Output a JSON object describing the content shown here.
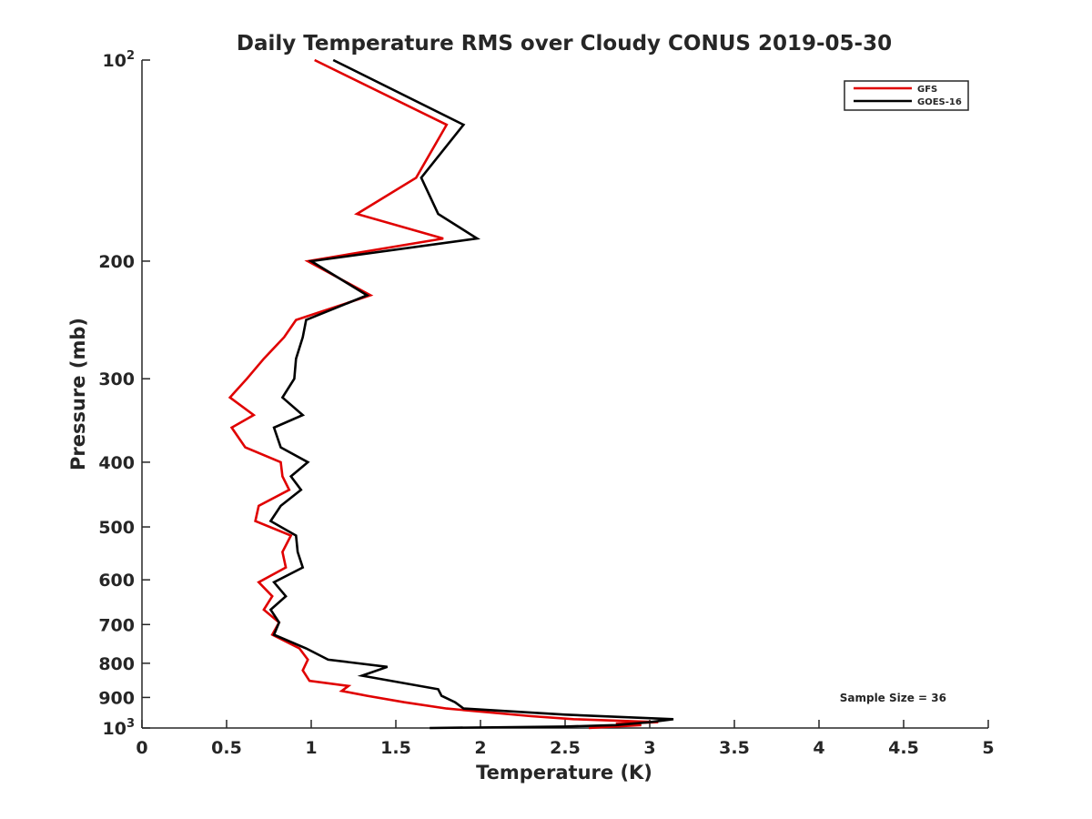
{
  "chart_data": {
    "type": "line",
    "title": "Daily Temperature RMS over Cloudy CONUS 2019-05-30",
    "xlabel": "Temperature (K)",
    "ylabel": "Pressure (mb)",
    "xlim": [
      0,
      5
    ],
    "ylim": [
      100,
      1000
    ],
    "y_scale": "log",
    "y_direction": "reversed",
    "grid": false,
    "legend_position": "top-right",
    "x_ticks": [
      0,
      0.5,
      1,
      1.5,
      2,
      2.5,
      3,
      3.5,
      4,
      4.5,
      5
    ],
    "x_tick_labels": [
      "0",
      "0.5",
      "1",
      "1.5",
      "2",
      "2.5",
      "3",
      "3.5",
      "4",
      "4.5",
      "5"
    ],
    "y_ticks": [
      100,
      200,
      300,
      400,
      500,
      600,
      700,
      800,
      900,
      1000
    ],
    "y_tick_labels": [
      {
        "base": "10",
        "exp": "2"
      },
      {
        "base": "200",
        "exp": ""
      },
      {
        "base": "300",
        "exp": ""
      },
      {
        "base": "400",
        "exp": ""
      },
      {
        "base": "500",
        "exp": ""
      },
      {
        "base": "600",
        "exp": ""
      },
      {
        "base": "700",
        "exp": ""
      },
      {
        "base": "800",
        "exp": ""
      },
      {
        "base": "900",
        "exp": ""
      },
      {
        "base": "10",
        "exp": "3"
      }
    ],
    "annotation": "Sample Size = 36",
    "series": [
      {
        "name": "GFS",
        "color": "#e00000",
        "points": [
          [
            1.02,
            100
          ],
          [
            1.8,
            125
          ],
          [
            1.62,
            150
          ],
          [
            1.27,
            170
          ],
          [
            1.78,
            185
          ],
          [
            0.98,
            200
          ],
          [
            1.35,
            225
          ],
          [
            0.91,
            245
          ],
          [
            0.84,
            260
          ],
          [
            0.72,
            280
          ],
          [
            0.62,
            300
          ],
          [
            0.52,
            320
          ],
          [
            0.66,
            340
          ],
          [
            0.53,
            355
          ],
          [
            0.61,
            380
          ],
          [
            0.82,
            400
          ],
          [
            0.83,
            420
          ],
          [
            0.87,
            440
          ],
          [
            0.69,
            465
          ],
          [
            0.67,
            490
          ],
          [
            0.88,
            515
          ],
          [
            0.83,
            545
          ],
          [
            0.85,
            575
          ],
          [
            0.69,
            605
          ],
          [
            0.77,
            635
          ],
          [
            0.72,
            665
          ],
          [
            0.81,
            695
          ],
          [
            0.77,
            725
          ],
          [
            0.93,
            760
          ],
          [
            0.98,
            790
          ],
          [
            0.95,
            820
          ],
          [
            0.99,
            850
          ],
          [
            1.22,
            865
          ],
          [
            1.18,
            880
          ],
          [
            1.33,
            895
          ],
          [
            1.55,
            915
          ],
          [
            1.8,
            935
          ],
          [
            2.3,
            960
          ],
          [
            2.55,
            970
          ],
          [
            3.05,
            980
          ],
          [
            2.8,
            985
          ],
          [
            2.95,
            990
          ],
          [
            2.64,
            1000
          ]
        ]
      },
      {
        "name": "GOES-16",
        "color": "#000000",
        "points": [
          [
            1.13,
            100
          ],
          [
            1.9,
            125
          ],
          [
            1.65,
            150
          ],
          [
            1.75,
            170
          ],
          [
            1.98,
            185
          ],
          [
            1.0,
            200
          ],
          [
            1.33,
            225
          ],
          [
            0.97,
            245
          ],
          [
            0.95,
            260
          ],
          [
            0.91,
            280
          ],
          [
            0.9,
            300
          ],
          [
            0.83,
            320
          ],
          [
            0.95,
            340
          ],
          [
            0.78,
            355
          ],
          [
            0.82,
            380
          ],
          [
            0.98,
            400
          ],
          [
            0.88,
            420
          ],
          [
            0.94,
            440
          ],
          [
            0.82,
            465
          ],
          [
            0.76,
            490
          ],
          [
            0.91,
            515
          ],
          [
            0.92,
            545
          ],
          [
            0.95,
            575
          ],
          [
            0.78,
            605
          ],
          [
            0.85,
            635
          ],
          [
            0.76,
            665
          ],
          [
            0.81,
            695
          ],
          [
            0.78,
            725
          ],
          [
            0.97,
            760
          ],
          [
            1.1,
            790
          ],
          [
            1.45,
            810
          ],
          [
            1.3,
            835
          ],
          [
            1.53,
            855
          ],
          [
            1.75,
            875
          ],
          [
            1.77,
            895
          ],
          [
            1.85,
            915
          ],
          [
            1.9,
            935
          ],
          [
            2.5,
            955
          ],
          [
            3.14,
            970
          ],
          [
            3.0,
            980
          ],
          [
            2.8,
            990
          ],
          [
            2.5,
            995
          ],
          [
            1.7,
            1000
          ]
        ]
      }
    ]
  }
}
